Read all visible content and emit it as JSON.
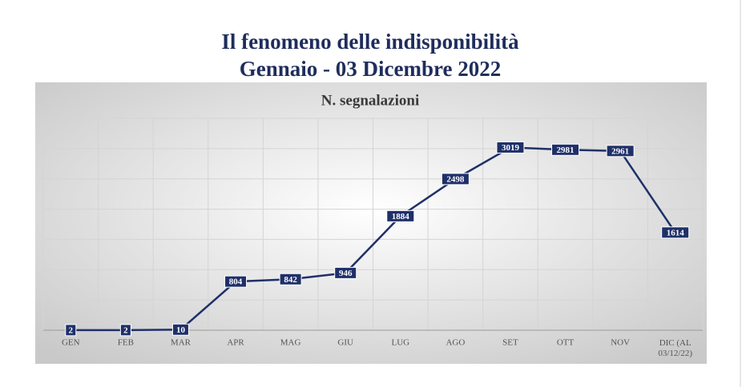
{
  "chart_data": {
    "type": "line",
    "title": "Il fenomeno delle indisponibilità",
    "subtitle": "Gennaio - 03 Dicembre 2022",
    "chart_title": "N. segnalazioni",
    "categories": [
      "GEN",
      "FEB",
      "MAR",
      "APR",
      "MAG",
      "GIU",
      "LUG",
      "AGO",
      "SET",
      "OTT",
      "NOV",
      "DIC (AL 03/12/22)"
    ],
    "values": [
      2,
      2,
      10,
      804,
      842,
      946,
      1884,
      2498,
      3019,
      2981,
      2961,
      1614
    ],
    "color": "#1f3069",
    "ylim": [
      0,
      3500
    ],
    "yticks": [
      0,
      500,
      1000,
      1500,
      2000,
      2500,
      3000,
      3500
    ],
    "grid": true
  }
}
